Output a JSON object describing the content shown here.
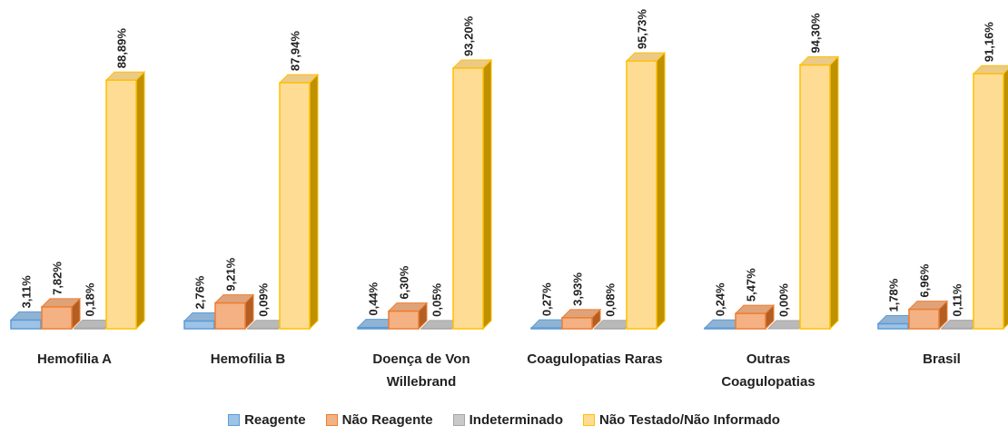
{
  "chart_data": {
    "type": "bar3d",
    "categories": [
      "Hemofilia A",
      "Hemofilia B",
      "Doença de Von Willebrand",
      "Coagulopatias Raras",
      "Outras Coagulopatias",
      "Brasil"
    ],
    "series": [
      {
        "name": "Reagente",
        "color": "#9dc3e6",
        "edge": "#5b9bd5",
        "values": [
          3.11,
          2.76,
          0.44,
          0.27,
          0.24,
          1.78
        ],
        "value_labels": [
          "3,11%",
          "2,76%",
          "0,44%",
          "0,27%",
          "0,24%",
          "1,78%"
        ]
      },
      {
        "name": "Não Reagente",
        "color": "#f4b183",
        "edge": "#ed7d31",
        "values": [
          7.82,
          9.21,
          6.3,
          3.93,
          5.47,
          6.96
        ],
        "value_labels": [
          "7,82%",
          "9,21%",
          "6,30%",
          "3,93%",
          "5,47%",
          "6,96%"
        ]
      },
      {
        "name": "Indeterminado",
        "color": "#c9c9c9",
        "edge": "#a5a5a5",
        "values": [
          0.18,
          0.09,
          0.05,
          0.08,
          0.0,
          0.11
        ],
        "value_labels": [
          "0,18%",
          "0,09%",
          "0,05%",
          "0,08%",
          "0,00%",
          "0,11%"
        ]
      },
      {
        "name": "Não Testado/Não Informado",
        "color": "#ffdc94",
        "edge": "#ffc000",
        "values": [
          88.89,
          87.94,
          93.2,
          95.73,
          94.3,
          91.16
        ],
        "value_labels": [
          "88,89%",
          "87,94%",
          "93,20%",
          "95,73%",
          "94,30%",
          "91,16%"
        ]
      }
    ],
    "legend": "bottom"
  }
}
